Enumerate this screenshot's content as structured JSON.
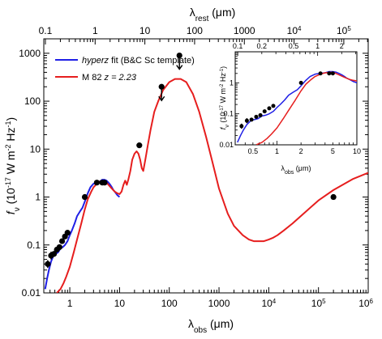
{
  "chart_data": [
    {
      "type": "line",
      "xscale": "log",
      "yscale": "log",
      "xlim": [
        0.3,
        1000000
      ],
      "ylim": [
        0.01,
        2000
      ],
      "xlabel": "λobs (μm)",
      "ylabel": "fν (10⁻¹⁷ W m⁻² Hz⁻¹)",
      "top_axis_label": "λrest (μm)",
      "redshift_z": 2.23,
      "x_ticks": [
        {
          "value": 1,
          "label": "1"
        },
        {
          "value": 10,
          "label": "10"
        },
        {
          "value": 100,
          "label": "100"
        },
        {
          "value": 1000,
          "label": "1000"
        },
        {
          "value": 10000,
          "label": "10",
          "exp": "4"
        },
        {
          "value": 100000,
          "label": "10",
          "exp": "5"
        },
        {
          "value": 1000000,
          "label": "10",
          "exp": "6"
        }
      ],
      "top_ticks": [
        {
          "value": 0.1,
          "label": "0.1"
        },
        {
          "value": 1,
          "label": "1"
        },
        {
          "value": 10,
          "label": "10"
        },
        {
          "value": 100,
          "label": "100"
        },
        {
          "value": 1000,
          "label": "1000"
        },
        {
          "value": 10000,
          "label": "10",
          "exp": "4"
        },
        {
          "value": 100000,
          "label": "10",
          "exp": "5"
        }
      ],
      "y_ticks": [
        {
          "value": 0.01,
          "label": "0.01"
        },
        {
          "value": 0.1,
          "label": "0.1"
        },
        {
          "value": 1,
          "label": "1"
        },
        {
          "value": 10,
          "label": "10"
        },
        {
          "value": 100,
          "label": "100"
        },
        {
          "value": 1000,
          "label": "1000"
        }
      ],
      "legend": {
        "position": "top-left",
        "entries": [
          {
            "name_italic": "hyperz",
            "name_rest": " fit (B&C Sc template)",
            "color": "#1f1fe6"
          },
          {
            "name_italic": "",
            "name_rest": "M 82 ",
            "z_text": "z = 2.23",
            "color": "#e61e1e"
          }
        ]
      },
      "series": [
        {
          "id": "hyperz",
          "color": "#1f1fe6",
          "x": [
            0.32,
            0.35,
            0.38,
            0.42,
            0.47,
            0.52,
            0.58,
            0.65,
            0.72,
            0.8,
            0.9,
            1.0,
            1.1,
            1.25,
            1.4,
            1.6,
            1.8,
            2.0,
            2.3,
            2.6,
            3.0,
            3.4,
            4.0,
            4.5,
            5.0,
            5.5,
            6.0,
            6.5,
            7.0,
            7.5,
            8.0,
            9.0,
            10.0
          ],
          "y": [
            0.012,
            0.02,
            0.03,
            0.045,
            0.06,
            0.065,
            0.07,
            0.085,
            0.09,
            0.1,
            0.12,
            0.16,
            0.2,
            0.28,
            0.4,
            0.5,
            0.6,
            0.8,
            1.2,
            1.6,
            1.9,
            2.0,
            2.1,
            2.3,
            2.3,
            2.2,
            2.0,
            1.8,
            1.6,
            1.4,
            1.3,
            1.1,
            1.0
          ]
        },
        {
          "id": "m82",
          "color": "#e61e1e",
          "x": [
            0.55,
            0.65,
            0.75,
            0.85,
            1.0,
            1.2,
            1.4,
            1.7,
            2.0,
            2.3,
            2.7,
            3.0,
            3.5,
            4.0,
            5.0,
            6.0,
            7.0,
            8.0,
            9.0,
            10.0,
            11.0,
            12.0,
            13.0,
            14.0,
            15.0,
            16.5,
            18.0,
            20.0,
            22.0,
            24.0,
            26.0,
            28.0,
            30.0,
            33.0,
            37.0,
            42.0,
            50.0,
            60.0,
            75.0,
            100.0,
            130.0,
            170.0,
            220.0,
            300.0,
            400.0,
            550.0,
            750.0,
            1000.0,
            1500.0,
            2000.0,
            3000.0,
            4000.0,
            5000.0,
            6500.0,
            8000.0,
            10000.0,
            12000.0,
            15000.0,
            20000.0,
            30000.0,
            50000.0,
            100000.0,
            200000.0,
            500000.0,
            1000000.0
          ],
          "y": [
            0.01,
            0.012,
            0.016,
            0.022,
            0.035,
            0.07,
            0.13,
            0.28,
            0.55,
            0.9,
            1.3,
            1.6,
            1.9,
            2.1,
            2.2,
            1.8,
            1.5,
            1.3,
            1.2,
            1.15,
            1.3,
            1.8,
            2.2,
            1.8,
            2.3,
            3.5,
            6.0,
            8.0,
            9.0,
            8.0,
            6.0,
            4.0,
            3.5,
            6.0,
            12.0,
            25.0,
            60.0,
            100.0,
            170.0,
            250.0,
            290.0,
            290.0,
            250.0,
            140.0,
            60.0,
            18.0,
            5.0,
            1.5,
            0.45,
            0.25,
            0.16,
            0.13,
            0.12,
            0.12,
            0.12,
            0.13,
            0.14,
            0.16,
            0.2,
            0.28,
            0.45,
            0.85,
            1.4,
            2.4,
            3.2
          ]
        }
      ],
      "points": {
        "x": [
          0.36,
          0.42,
          0.48,
          0.55,
          0.62,
          0.7,
          0.8,
          0.9,
          2.0,
          3.5,
          4.5,
          5.0,
          25.0,
          200000.0
        ],
        "y": [
          0.04,
          0.06,
          0.065,
          0.08,
          0.09,
          0.12,
          0.15,
          0.18,
          1.0,
          2.0,
          2.0,
          2.0,
          12.0,
          1.0
        ],
        "yerr_log": [
          0.08,
          0.08,
          0.06,
          0.06,
          0.05,
          0.05,
          0.05,
          0.05,
          0.06,
          0.04,
          0.04,
          0.03,
          0.05,
          0.0
        ]
      },
      "upper_limits": {
        "x": [
          70.0,
          160.0
        ],
        "y": [
          200.0,
          900.0
        ]
      }
    },
    {
      "type": "line",
      "role": "inset",
      "xscale": "log",
      "yscale": "log",
      "xlim": [
        0.3,
        10.0
      ],
      "ylim": [
        0.01,
        10.0
      ],
      "xlabel": "λobs (μm)",
      "ylabel": "fν (10⁻¹⁷ W m⁻² Hz⁻¹)",
      "x_ticks": [
        {
          "value": 0.5,
          "label": "0.5"
        },
        {
          "value": 1,
          "label": "1"
        },
        {
          "value": 2,
          "label": "2"
        },
        {
          "value": 5,
          "label": "5"
        },
        {
          "value": 10,
          "label": "10"
        }
      ],
      "top_ticks": [
        {
          "value": 0.1,
          "label": "0.1"
        },
        {
          "value": 0.2,
          "label": "0.2"
        },
        {
          "value": 0.5,
          "label": "0.5"
        },
        {
          "value": 1,
          "label": "1"
        },
        {
          "value": 2,
          "label": "2"
        }
      ],
      "y_ticks": [
        {
          "value": 0.01,
          "label": "0.01"
        },
        {
          "value": 0.1,
          "label": "0.1"
        },
        {
          "value": 1,
          "label": "1"
        }
      ]
    }
  ]
}
